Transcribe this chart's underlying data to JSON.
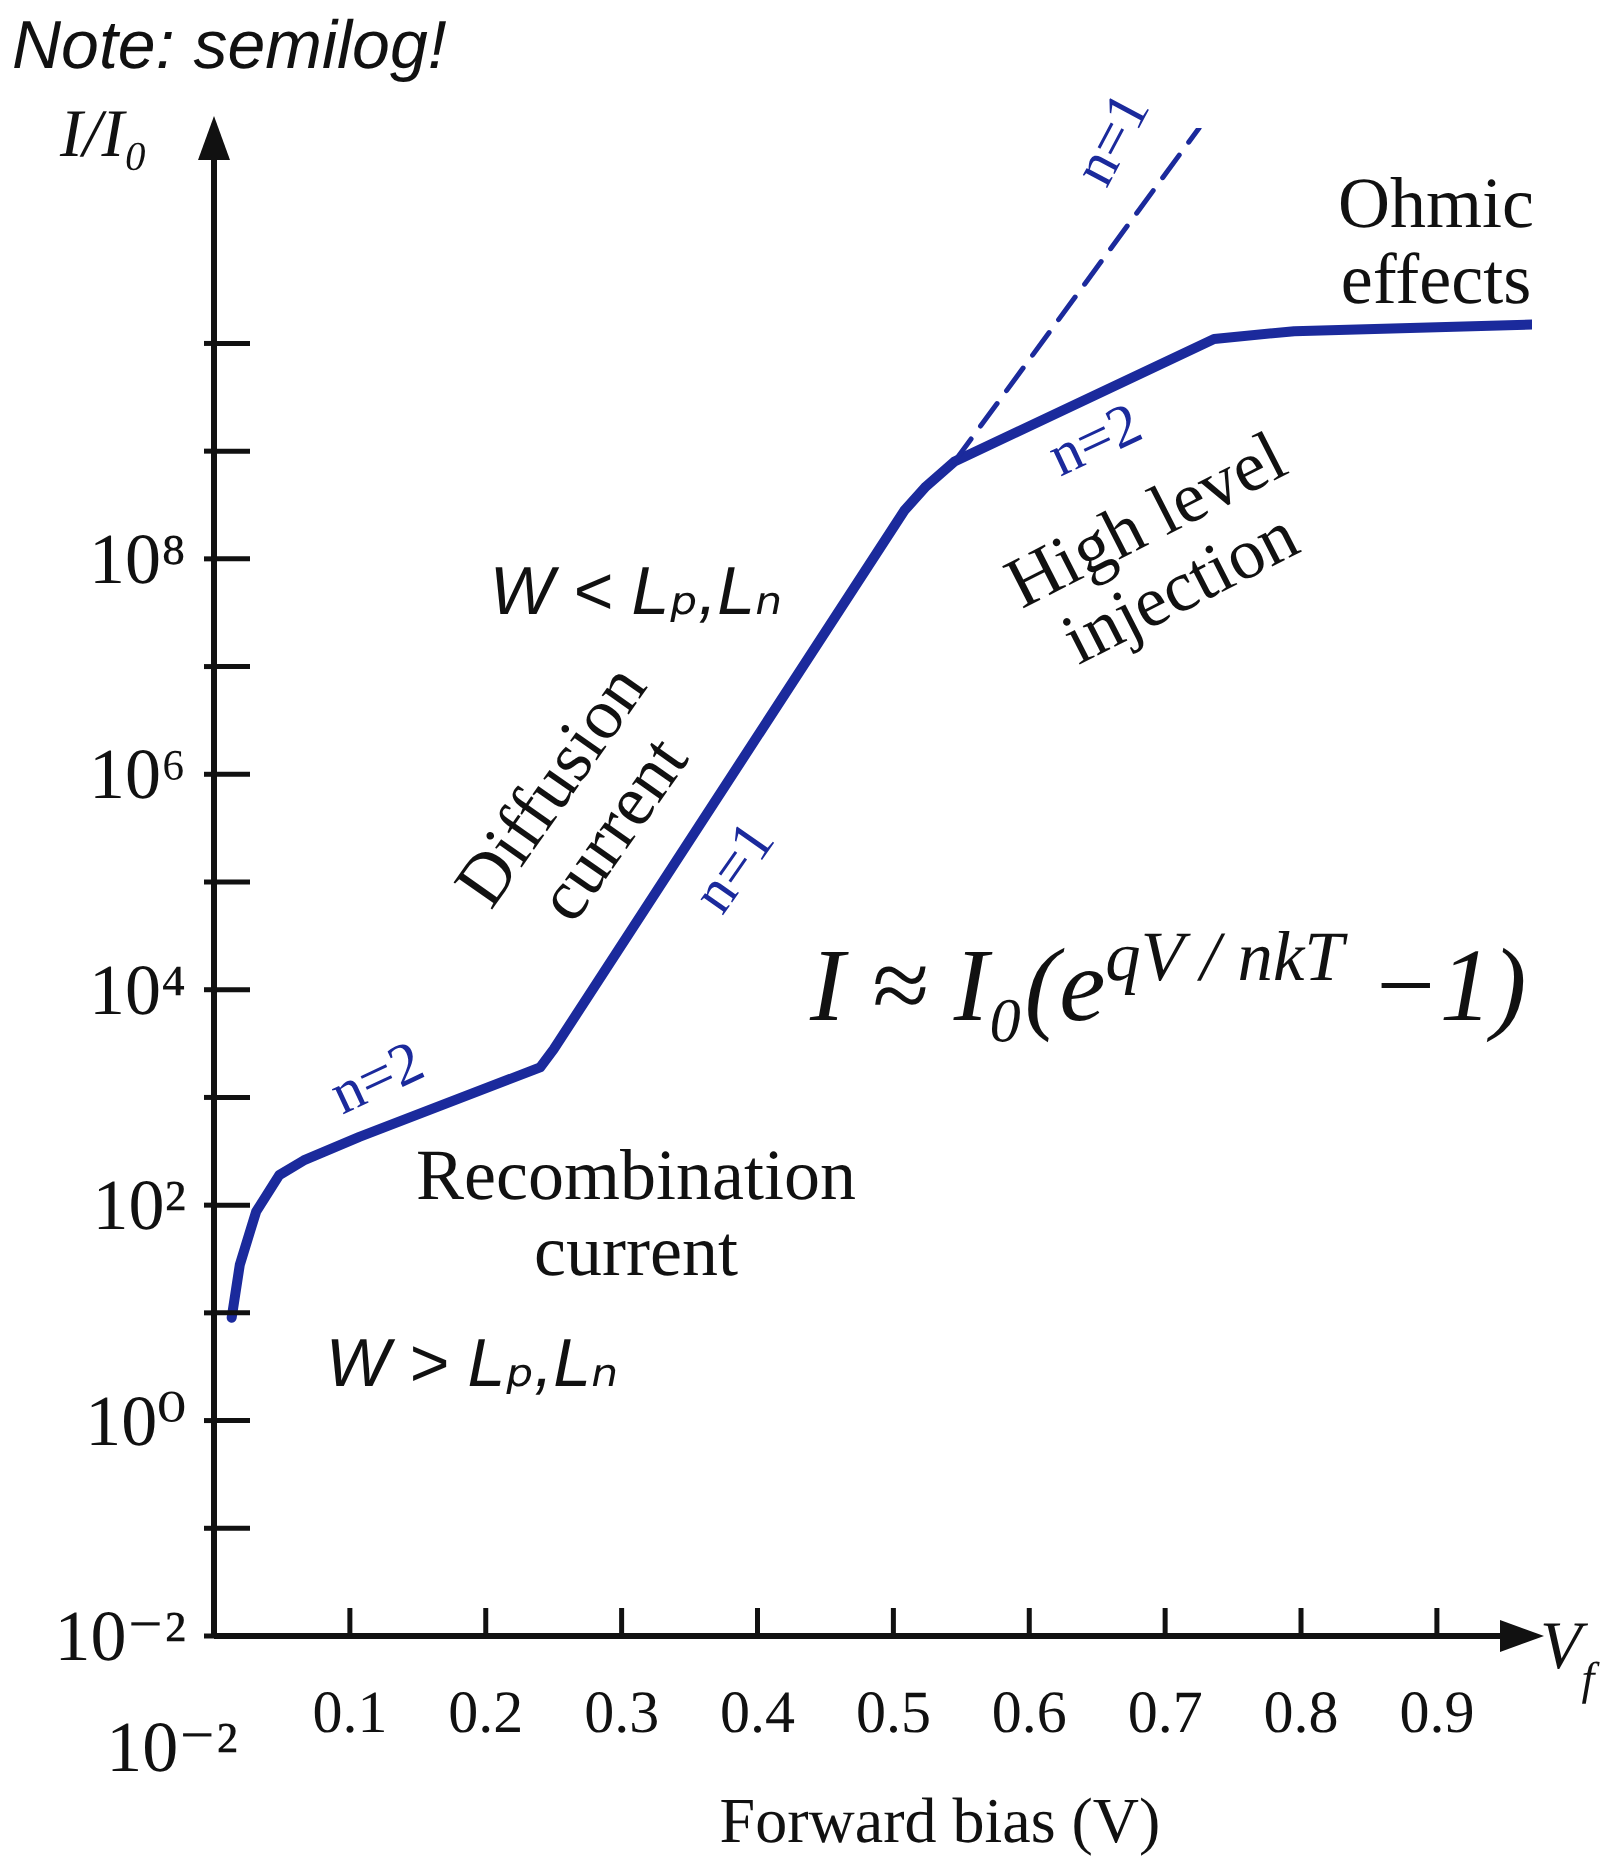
{
  "chart_data": {
    "type": "line",
    "xlabel": "Forward bias (V)",
    "ylabel": "I/I₀",
    "xlim": [
      0,
      0.97
    ],
    "xticks": [
      0.1,
      0.2,
      0.3,
      0.4,
      0.5,
      0.6,
      0.7,
      0.8,
      0.9
    ],
    "ylim": [
      0.01,
      1000000000000.0
    ],
    "yticks": [
      {
        "value": 0.01,
        "label": "10⁻²"
      },
      {
        "value": 0.1,
        "label": null
      },
      {
        "value": 1,
        "label": "10⁰"
      },
      {
        "value": 10,
        "label": null
      },
      {
        "value": 100,
        "label": "10²"
      },
      {
        "value": 1000,
        "label": null
      },
      {
        "value": 10000,
        "label": "10⁴"
      },
      {
        "value": 100000,
        "label": null
      },
      {
        "value": 1000000,
        "label": "10⁶"
      },
      {
        "value": 10000000,
        "label": null
      },
      {
        "value": 100000000,
        "label": "10⁸"
      },
      {
        "value": 1000000000,
        "label": null
      },
      {
        "value": 10000000000,
        "label": null
      }
    ],
    "log": "y",
    "marker": "none",
    "line_style": "solid",
    "series": [
      {
        "color": "#1b2a9c",
        "x": [
          0.013,
          0.019,
          0.031,
          0.048,
          0.066,
          0.107,
          0.24,
          0.25,
          0.508,
          0.524,
          0.545,
          0.736,
          0.795,
          0.97
        ],
        "values": [
          9,
          28,
          87,
          190,
          260,
          430,
          1900,
          2800,
          280000000.0,
          470000000.0,
          800000000.0,
          11000000000.0,
          13000000000.0,
          15000000000.0
        ]
      },
      {
        "color": "#1b2a9c",
        "line_style": "dashed",
        "x": [
          0.545,
          0.725
        ],
        "values": [
          800000000.0,
          1000000000000.0
        ]
      }
    ],
    "annotations": [
      "Note: semilog!",
      "n=1",
      "Ohmic effects",
      "n=2",
      "High level injection",
      "W < Lₚ,Lₙ",
      "Diffusion current",
      "n=1",
      "I ≈ I₀(e$^{qV / nkT}$ −1)",
      "n=2",
      "Recombination current",
      "W > Lₚ,Lₙ",
      "10⁻²",
      "V$_{f}$"
    ]
  }
}
